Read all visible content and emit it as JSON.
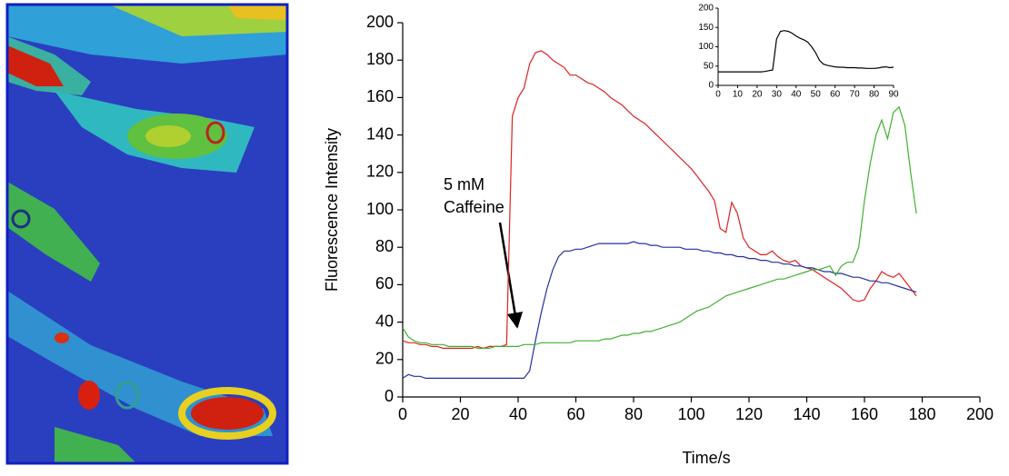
{
  "chart_data": [
    {
      "type": "line",
      "x_label": "Time/s",
      "y_label": "Fluorescence Intensity",
      "annotation": [
        "5 mM",
        "Caffeine"
      ],
      "xlim": [
        0,
        200
      ],
      "xticks": [
        0,
        20,
        40,
        60,
        80,
        100,
        120,
        140,
        160,
        180,
        200
      ],
      "ylim": [
        0,
        200
      ],
      "yticks": [
        0,
        20,
        40,
        60,
        80,
        100,
        120,
        140,
        160,
        180,
        200
      ],
      "x": [
        0,
        2,
        4,
        6,
        8,
        10,
        12,
        14,
        16,
        18,
        20,
        22,
        24,
        26,
        28,
        30,
        32,
        34,
        36,
        38,
        40,
        42,
        44,
        46,
        48,
        50,
        52,
        54,
        56,
        58,
        60,
        62,
        64,
        66,
        68,
        70,
        72,
        74,
        76,
        78,
        80,
        82,
        84,
        86,
        88,
        90,
        92,
        94,
        96,
        98,
        100,
        102,
        104,
        106,
        108,
        110,
        112,
        114,
        116,
        118,
        120,
        122,
        124,
        126,
        128,
        130,
        132,
        134,
        136,
        138,
        140,
        142,
        144,
        146,
        148,
        150,
        152,
        154,
        156,
        158,
        160,
        162,
        164,
        166,
        168,
        170,
        172,
        174,
        176,
        178
      ],
      "series": [
        {
          "color": "#e02020",
          "values": [
            30,
            29,
            29,
            28,
            28,
            27,
            27,
            26,
            26,
            26,
            26,
            26,
            26,
            27,
            26,
            27,
            27,
            27,
            28,
            150,
            160,
            165,
            178,
            184,
            185,
            183,
            180,
            178,
            176,
            172,
            172,
            170,
            168,
            167,
            165,
            163,
            160,
            158,
            156,
            153,
            150,
            148,
            146,
            143,
            140,
            137,
            134,
            131,
            128,
            125,
            122,
            118,
            114,
            110,
            105,
            90,
            88,
            104,
            98,
            85,
            80,
            78,
            76,
            76,
            78,
            75,
            73,
            72,
            73,
            70,
            69,
            68,
            66,
            64,
            62,
            60,
            58,
            55,
            52,
            51,
            52,
            58,
            62,
            67,
            65,
            64,
            66,
            62,
            58,
            54
          ]
        },
        {
          "color": "#2030a0",
          "values": [
            10,
            12,
            11,
            11,
            10,
            10,
            10,
            10,
            10,
            10,
            10,
            10,
            10,
            10,
            10,
            10,
            10,
            10,
            10,
            10,
            10,
            10,
            14,
            30,
            45,
            58,
            68,
            75,
            78,
            78,
            79,
            79,
            80,
            81,
            82,
            82,
            82,
            82,
            82,
            82,
            83,
            82,
            82,
            81,
            81,
            80,
            80,
            80,
            80,
            79,
            79,
            79,
            78,
            78,
            77,
            77,
            76,
            76,
            75,
            75,
            74,
            74,
            73,
            73,
            72,
            72,
            71,
            71,
            70,
            70,
            69,
            69,
            68,
            67,
            67,
            66,
            66,
            65,
            64,
            64,
            63,
            62,
            62,
            61,
            61,
            60,
            59,
            58,
            57,
            56
          ]
        },
        {
          "color": "#40b030",
          "values": [
            37,
            32,
            30,
            29,
            29,
            28,
            28,
            28,
            27,
            27,
            27,
            27,
            27,
            26,
            26,
            26,
            27,
            27,
            27,
            27,
            27,
            28,
            28,
            28,
            29,
            29,
            29,
            29,
            29,
            29,
            30,
            30,
            30,
            30,
            30,
            31,
            31,
            32,
            33,
            33,
            34,
            34,
            35,
            35,
            36,
            37,
            38,
            39,
            40,
            42,
            44,
            46,
            47,
            48,
            50,
            52,
            54,
            55,
            56,
            57,
            58,
            59,
            60,
            61,
            62,
            63,
            63,
            64,
            65,
            66,
            67,
            68,
            68,
            69,
            70,
            65,
            70,
            72,
            72,
            80,
            105,
            125,
            140,
            148,
            138,
            152,
            155,
            145,
            120,
            98
          ]
        }
      ]
    },
    {
      "type": "line",
      "xlim": [
        0,
        90
      ],
      "xticks": [
        0,
        10,
        20,
        30,
        40,
        50,
        60,
        70,
        80,
        90
      ],
      "ylim": [
        0,
        200
      ],
      "yticks": [
        0,
        50,
        100,
        150,
        200
      ],
      "x": [
        0,
        2,
        4,
        6,
        8,
        10,
        12,
        14,
        16,
        18,
        20,
        22,
        24,
        26,
        28,
        30,
        32,
        34,
        36,
        38,
        40,
        42,
        44,
        46,
        48,
        50,
        52,
        54,
        56,
        58,
        60,
        62,
        64,
        66,
        68,
        70,
        72,
        74,
        76,
        78,
        80,
        82,
        84,
        86,
        88,
        90
      ],
      "series": [
        {
          "color": "#000000",
          "values": [
            35,
            35,
            35,
            35,
            35,
            35,
            35,
            35,
            35,
            35,
            35,
            35,
            36,
            38,
            40,
            120,
            140,
            142,
            140,
            135,
            128,
            122,
            118,
            112,
            100,
            85,
            65,
            55,
            52,
            50,
            48,
            47,
            47,
            46,
            46,
            46,
            45,
            45,
            44,
            44,
            44,
            45,
            47,
            48,
            46,
            47
          ]
        }
      ]
    }
  ]
}
